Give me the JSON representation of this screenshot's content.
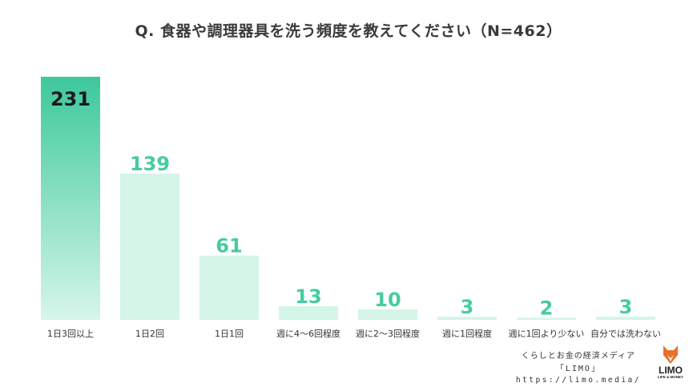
{
  "title": "Q. 食器や調理器具を洗う頻度を教えてください（N=462）",
  "footer": {
    "line1": "くらしとお金の経済メディア",
    "line2": "「LIMO」",
    "line3": "https://limo.media/"
  },
  "logo": {
    "word": "LIMO",
    "tagline": "LIFE & MONEY",
    "icon": "fox-icon"
  },
  "colors": {
    "top_bar_top": "#3dc89b",
    "top_bar_bottom": "#d6f6ea",
    "bar": "#d4f5e7",
    "label_dark": "#1a1a1a",
    "label_accent": "#46cc9f",
    "logo_orange": "#e8702a"
  },
  "chart_data": {
    "type": "bar",
    "categories": [
      "1日3回以上",
      "1日2回",
      "1日1回",
      "週に4〜6回程度",
      "週に2〜3回程度",
      "週に1回程度",
      "週に1回より少ない",
      "自分では洗わない"
    ],
    "values": [
      231,
      139,
      61,
      13,
      10,
      3,
      2,
      3
    ],
    "ylim": [
      0,
      231
    ],
    "grid": false,
    "legend": "none"
  }
}
